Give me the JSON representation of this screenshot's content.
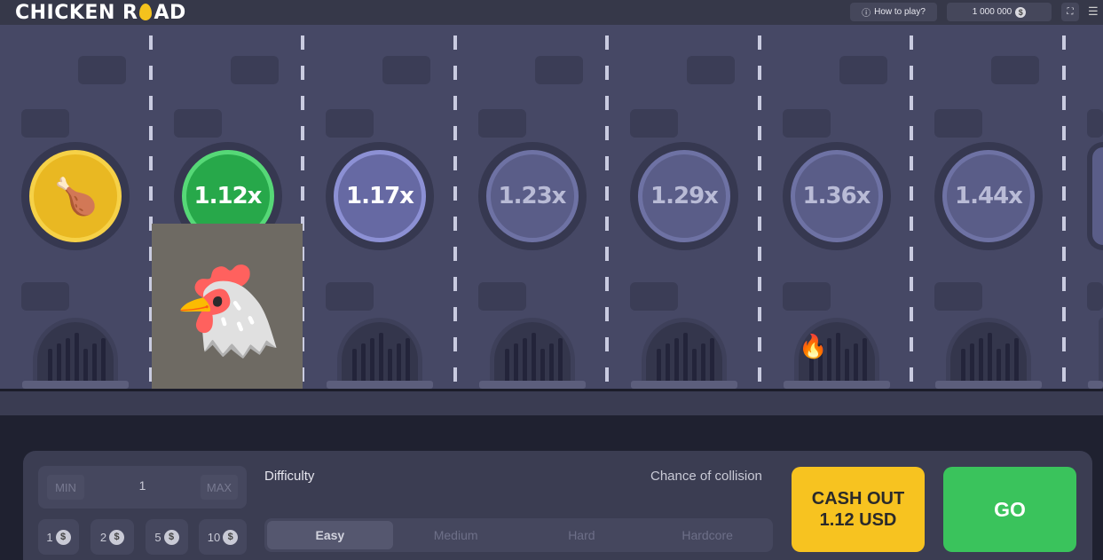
{
  "header": {
    "logo_text_1": "CHICKEN R",
    "logo_text_2": "AD",
    "how_to_play": "How to play?",
    "balance": "1 000 000",
    "currency_icon": "dollar-coin-icon"
  },
  "road": {
    "multipliers": [
      "",
      "1.12x",
      "1.17x",
      "1.23x",
      "1.29x",
      "1.36x",
      "1.44x",
      ""
    ],
    "active_index": 1
  },
  "controls": {
    "min_label": "MIN",
    "max_label": "MAX",
    "bet_value": "1",
    "quick_bets": [
      "1",
      "2",
      "5",
      "10"
    ],
    "difficulty_label": "Difficulty",
    "collision_label": "Chance of collision",
    "difficulties": [
      "Easy",
      "Medium",
      "Hard",
      "Hardcore"
    ],
    "selected_difficulty": "Easy",
    "cashout_label": "CASH OUT",
    "cashout_amount": "1.12 USD",
    "go_label": "GO"
  },
  "colors": {
    "cashout": "#f7c320",
    "go": "#3ac35c",
    "active": "#27a84a",
    "start": "#e9b822"
  }
}
